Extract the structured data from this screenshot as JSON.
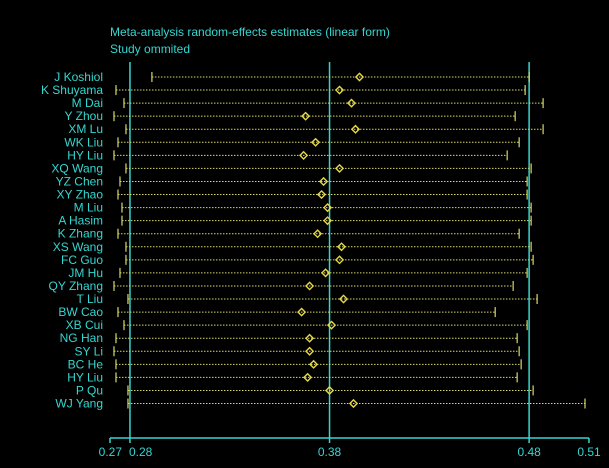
{
  "chart_data": {
    "type": "forest",
    "title": "Meta-analysis random-effects estimates (linear form)",
    "subtitle": "Study ommited",
    "xlim": [
      0.27,
      0.51
    ],
    "reference_lines": [
      0.28,
      0.38,
      0.48
    ],
    "xticks": [
      {
        "value": 0.27,
        "label": "0.27"
      },
      {
        "value": 0.28,
        "label": "0.28"
      },
      {
        "value": 0.38,
        "label": "0.38"
      },
      {
        "value": 0.48,
        "label": "0.48"
      },
      {
        "value": 0.51,
        "label": "0.51"
      }
    ],
    "studies": [
      {
        "name": "J Koshiol",
        "est": 0.395,
        "low": 0.291,
        "high": 0.48
      },
      {
        "name": "K Shuyama",
        "est": 0.385,
        "low": 0.273,
        "high": 0.478
      },
      {
        "name": "M Dai",
        "est": 0.391,
        "low": 0.277,
        "high": 0.487
      },
      {
        "name": "Y Zhou",
        "est": 0.368,
        "low": 0.272,
        "high": 0.473
      },
      {
        "name": "XM Lu",
        "est": 0.393,
        "low": 0.278,
        "high": 0.487
      },
      {
        "name": "WK Liu",
        "est": 0.373,
        "low": 0.274,
        "high": 0.475
      },
      {
        "name": "HY Liu",
        "est": 0.367,
        "low": 0.272,
        "high": 0.469
      },
      {
        "name": "XQ Wang",
        "est": 0.385,
        "low": 0.278,
        "high": 0.481
      },
      {
        "name": "YZ Chen",
        "est": 0.377,
        "low": 0.275,
        "high": 0.479
      },
      {
        "name": "XY Zhao",
        "est": 0.376,
        "low": 0.274,
        "high": 0.479
      },
      {
        "name": "M Liu",
        "est": 0.379,
        "low": 0.276,
        "high": 0.481
      },
      {
        "name": "A Hasim",
        "est": 0.379,
        "low": 0.276,
        "high": 0.481
      },
      {
        "name": "K Zhang",
        "est": 0.374,
        "low": 0.274,
        "high": 0.475
      },
      {
        "name": "XS Wang",
        "est": 0.386,
        "low": 0.278,
        "high": 0.481
      },
      {
        "name": "FC Guo",
        "est": 0.385,
        "low": 0.278,
        "high": 0.482
      },
      {
        "name": "JM Hu",
        "est": 0.378,
        "low": 0.275,
        "high": 0.479
      },
      {
        "name": "QY Zhang",
        "est": 0.37,
        "low": 0.272,
        "high": 0.472
      },
      {
        "name": "T Liu",
        "est": 0.387,
        "low": 0.279,
        "high": 0.484
      },
      {
        "name": "BW Cao",
        "est": 0.366,
        "low": 0.274,
        "high": 0.463
      },
      {
        "name": "XB Cui",
        "est": 0.381,
        "low": 0.277,
        "high": 0.479
      },
      {
        "name": "NG Han",
        "est": 0.37,
        "low": 0.273,
        "high": 0.474
      },
      {
        "name": "SY Li",
        "est": 0.37,
        "low": 0.272,
        "high": 0.475
      },
      {
        "name": "BC He",
        "est": 0.372,
        "low": 0.273,
        "high": 0.476
      },
      {
        "name": "HY Liu",
        "est": 0.369,
        "low": 0.273,
        "high": 0.474
      },
      {
        "name": "P Qu",
        "est": 0.38,
        "low": 0.279,
        "high": 0.482
      },
      {
        "name": "WJ Yang",
        "est": 0.392,
        "low": 0.279,
        "high": 0.508
      }
    ],
    "colors": {
      "text": "#35d6d0",
      "reference_line": "#35d6d0",
      "ci_line": "#d9d96a",
      "point": "#e3d84a",
      "axis": "#35d6d0"
    }
  }
}
